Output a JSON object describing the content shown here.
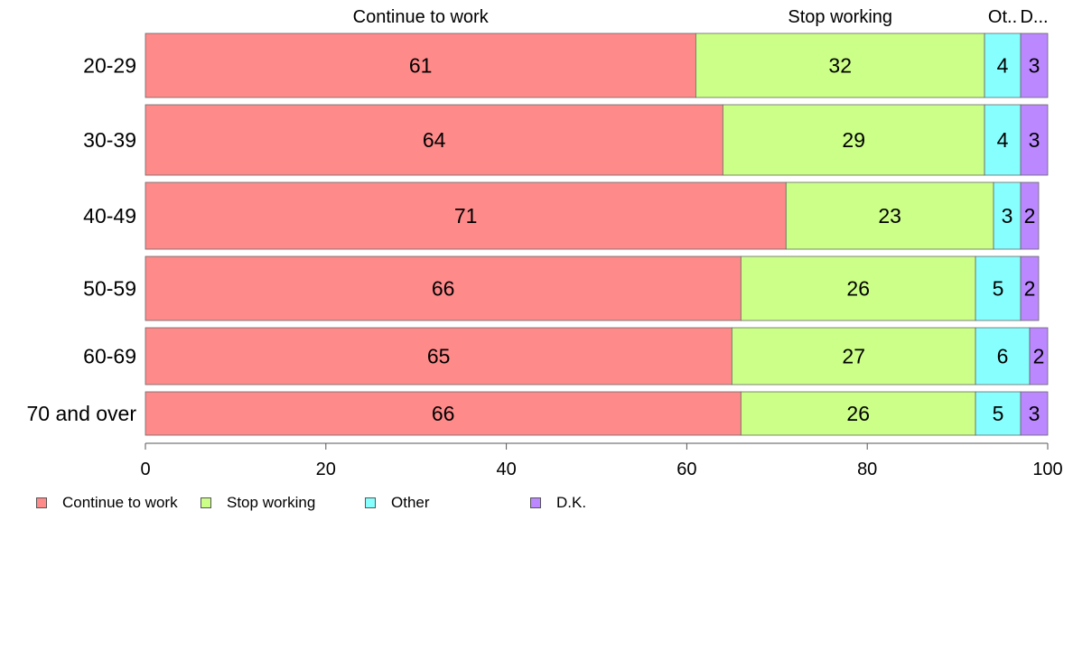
{
  "chart_data": {
    "type": "bar",
    "orientation": "horizontal",
    "stacked": true,
    "categories": [
      "20-29",
      "30-39",
      "40-49",
      "50-59",
      "60-69",
      "70 and over"
    ],
    "series": [
      {
        "name": "Continue to work",
        "color": "#FF8A8A",
        "values": [
          61,
          64,
          71,
          66,
          65,
          66
        ]
      },
      {
        "name": "Stop working",
        "color": "#CCFF88",
        "values": [
          32,
          29,
          23,
          26,
          27,
          26
        ]
      },
      {
        "name": "Other",
        "color": "#88FFFF",
        "values": [
          4,
          4,
          3,
          5,
          6,
          5
        ]
      },
      {
        "name": "D.K.",
        "color": "#BB88FF",
        "values": [
          3,
          3,
          2,
          2,
          2,
          3
        ]
      }
    ],
    "top_labels": [
      "Continue to work",
      "Stop working",
      "Ot..",
      "D..."
    ],
    "xlim": [
      0,
      100
    ],
    "xticks": [
      0,
      20,
      40,
      60,
      80,
      100
    ],
    "grid": false,
    "legend_position": "bottom-left"
  }
}
